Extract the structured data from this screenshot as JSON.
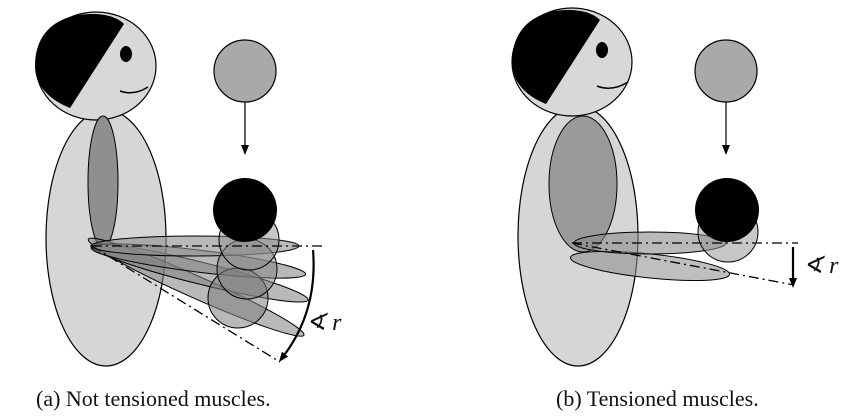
{
  "figure": {
    "panels": [
      {
        "caption": "(a) Not tensioned muscles.",
        "angle_label": "∢ r"
      },
      {
        "caption": "(b) Tensioned muscles.",
        "angle_label": "∢ r"
      }
    ]
  },
  "colors": {
    "body": "#d6d6d6",
    "head": "#d8d8d8",
    "hair": "#000000",
    "muscle": "#8f8f8f",
    "ball_falling": "#a9a9a9",
    "ball_held": "#000000",
    "outline": "#000000"
  }
}
